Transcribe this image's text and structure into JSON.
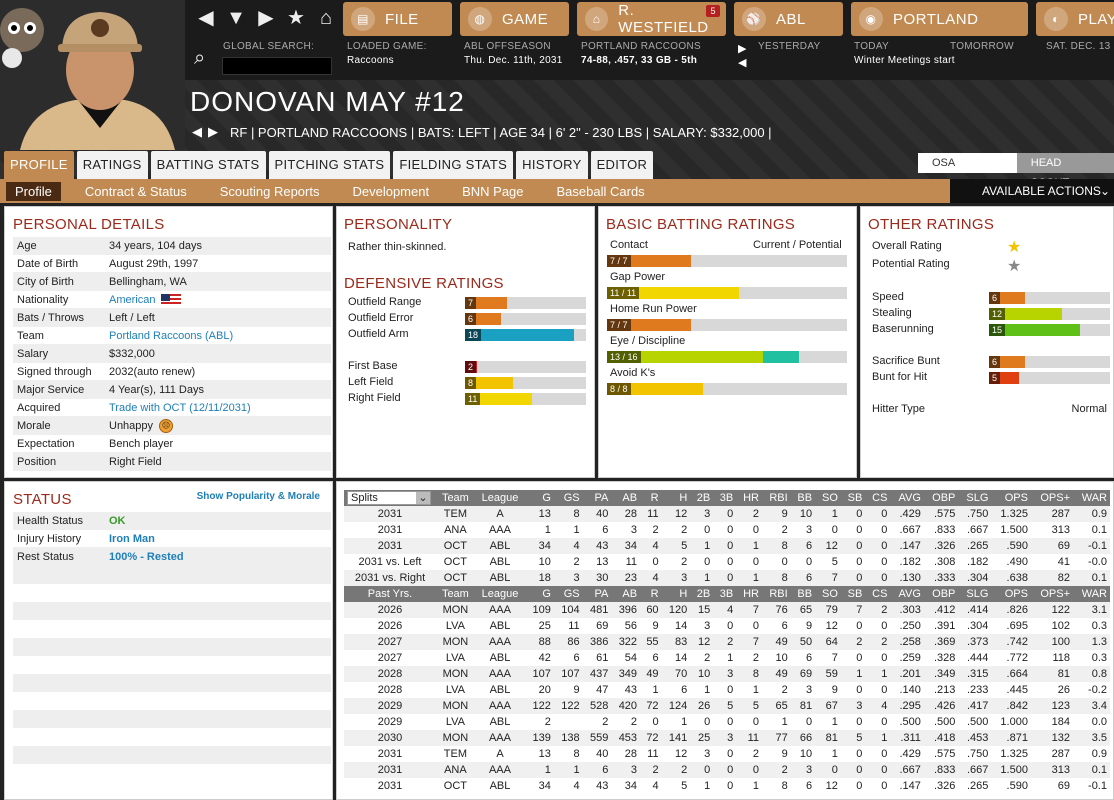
{
  "header": {
    "menu": {
      "file": "FILE",
      "game": "GAME",
      "manager": "R. WESTFIELD",
      "manager_badge": "5",
      "league": "ABL",
      "team": "PORTLAND",
      "play": "PLAY"
    },
    "global_search_label": "GLOBAL SEARCH:",
    "loaded_game_label": "LOADED GAME:",
    "loaded_game": "Raccoons",
    "offseason_label": "ABL OFFSEASON",
    "date": "Thu. Dec. 11th, 2031",
    "team_label": "PORTLAND RACCOONS",
    "team_record": "74-88, .457, 33 GB - 5th",
    "yesterday": "YESTERDAY",
    "today": "TODAY",
    "tomorrow": "TOMORROW",
    "next_day": "SAT. DEC. 13",
    "today_event": "Winter Meetings start"
  },
  "player": {
    "name": "DONOVAN MAY  #12",
    "line": "RF | PORTLAND RACCOONS  |  BATS: LEFT  |  AGE 34  |  6' 2\" - 230 LBS  |  SALARY: $332,000  |"
  },
  "tabs": [
    "PROFILE",
    "RATINGS",
    "BATTING STATS",
    "PITCHING STATS",
    "FIELDING STATS",
    "HISTORY",
    "EDITOR"
  ],
  "toggle": {
    "osa": "OSA RATINGS",
    "scout": "HEAD SCOUT"
  },
  "subtabs": [
    "Profile",
    "Contract & Status",
    "Scouting Reports",
    "Development",
    "BNN Page",
    "Baseball Cards"
  ],
  "actions_label": "AVAILABLE ACTIONS",
  "personal": {
    "title": "PERSONAL DETAILS",
    "rows": [
      {
        "k": "Age",
        "v": "34 years, 104 days"
      },
      {
        "k": "Date of Birth",
        "v": "August 29th, 1997"
      },
      {
        "k": "City of Birth",
        "v": "Bellingham, WA"
      },
      {
        "k": "Nationality",
        "v": "American",
        "link": true
      },
      {
        "k": "Bats / Throws",
        "v": "Left / Left"
      },
      {
        "k": "Team",
        "v": "Portland Raccoons (ABL)",
        "link": true
      },
      {
        "k": "Salary",
        "v": "$332,000"
      },
      {
        "k": "Signed through",
        "v": "2032(auto renew)"
      },
      {
        "k": "Major Service",
        "v": "4 Year(s), 111 Days"
      },
      {
        "k": "Acquired",
        "v": "Trade with OCT (12/11/2031)",
        "link": true
      },
      {
        "k": "Morale",
        "v": "Unhappy"
      },
      {
        "k": "Expectation",
        "v": "Bench player"
      },
      {
        "k": "Position",
        "v": "Right Field"
      }
    ]
  },
  "personality": {
    "title": "PERSONALITY",
    "text": "Rather thin-skinned."
  },
  "defensive": {
    "title": "DEFENSIVE RATINGS",
    "rows": [
      {
        "label": "Outfield Range",
        "value": 7,
        "color": "#e07a1f"
      },
      {
        "label": "Outfield Error",
        "value": 6,
        "color": "#e07a1f"
      },
      {
        "label": "Outfield Arm",
        "value": 18,
        "color": "#1aa0c0"
      },
      {
        "label": "First Base",
        "value": 2,
        "color": "#d02020"
      },
      {
        "label": "Left Field",
        "value": 8,
        "color": "#f2c400"
      },
      {
        "label": "Right Field",
        "value": 11,
        "color": "#f2d600"
      }
    ]
  },
  "batting": {
    "title": "BASIC BATTING RATINGS",
    "cp_label": "Current / Potential",
    "rows": [
      {
        "label": "Contact",
        "text": "7 / 7",
        "cur": 7,
        "pot": 7,
        "color": "#e07a1f",
        "pcolor": "#e07a1f"
      },
      {
        "label": "Gap Power",
        "text": "11 / 11",
        "cur": 11,
        "pot": 11,
        "color": "#f2d600",
        "pcolor": "#f2d600"
      },
      {
        "label": "Home Run Power",
        "text": "7 / 7",
        "cur": 7,
        "pot": 7,
        "color": "#e07a1f",
        "pcolor": "#e07a1f"
      },
      {
        "label": "Eye / Discipline",
        "text": "13 / 16",
        "cur": 13,
        "pot": 16,
        "color": "#b7d400",
        "pcolor": "#20c0a0"
      },
      {
        "label": "Avoid K's",
        "text": "8 / 8",
        "cur": 8,
        "pot": 8,
        "color": "#f2c400",
        "pcolor": "#f2c400"
      }
    ]
  },
  "other": {
    "title": "OTHER RATINGS",
    "overall_label": "Overall Rating",
    "potential_label": "Potential Rating",
    "overall_star_color": "#f2c400",
    "potential_star_color": "#888888",
    "hitter_type_label": "Hitter Type",
    "hitter_type": "Normal",
    "rows": [
      {
        "label": "Speed",
        "value": 6,
        "color": "#e07a1f"
      },
      {
        "label": "Stealing",
        "value": 12,
        "color": "#b7d400"
      },
      {
        "label": "Baserunning",
        "value": 15,
        "color": "#5fc018"
      },
      {
        "label": "Sacrifice Bunt",
        "value": 6,
        "color": "#e07a1f"
      },
      {
        "label": "Bunt for Hit",
        "value": 5,
        "color": "#e04010"
      }
    ]
  },
  "status": {
    "title": "STATUS",
    "link": "Show Popularity & Morale",
    "rows": [
      {
        "k": "Health Status",
        "v": "OK",
        "color": "#3a9a2a"
      },
      {
        "k": "Injury History",
        "v": "Iron Man",
        "color": "#1f7fb8"
      },
      {
        "k": "Rest Status",
        "v": "100% - Rested",
        "color": "#1f7fb8"
      }
    ]
  },
  "stats": {
    "splits_label": "Splits",
    "cols": [
      "Team",
      "League",
      "G",
      "GS",
      "PA",
      "AB",
      "R",
      "H",
      "2B",
      "3B",
      "HR",
      "RBI",
      "BB",
      "SO",
      "SB",
      "CS",
      "AVG",
      "OBP",
      "SLG",
      "OPS",
      "OPS+",
      "WAR"
    ],
    "split_rows": [
      [
        "2031",
        "TEM",
        "A",
        "13",
        "8",
        "40",
        "28",
        "11",
        "12",
        "3",
        "0",
        "2",
        "9",
        "10",
        "1",
        "0",
        "0",
        ".429",
        ".575",
        ".750",
        "1.325",
        "287",
        "0.9"
      ],
      [
        "2031",
        "ANA",
        "AAA",
        "1",
        "1",
        "6",
        "3",
        "2",
        "2",
        "0",
        "0",
        "0",
        "2",
        "3",
        "0",
        "0",
        "0",
        ".667",
        ".833",
        ".667",
        "1.500",
        "313",
        "0.1"
      ],
      [
        "2031",
        "OCT",
        "ABL",
        "34",
        "4",
        "43",
        "34",
        "4",
        "5",
        "1",
        "0",
        "1",
        "8",
        "6",
        "12",
        "0",
        "0",
        ".147",
        ".326",
        ".265",
        ".590",
        "69",
        "-0.1"
      ],
      [
        "2031 vs. Left",
        "OCT",
        "ABL",
        "10",
        "2",
        "13",
        "11",
        "0",
        "2",
        "0",
        "0",
        "0",
        "0",
        "0",
        "5",
        "0",
        "0",
        ".182",
        ".308",
        ".182",
        ".490",
        "41",
        "-0.0"
      ],
      [
        "2031 vs. Right",
        "OCT",
        "ABL",
        "18",
        "3",
        "30",
        "23",
        "4",
        "3",
        "1",
        "0",
        "1",
        "8",
        "6",
        "7",
        "0",
        "0",
        ".130",
        ".333",
        ".304",
        ".638",
        "82",
        "0.1"
      ]
    ],
    "past_label": "Past Yrs.",
    "past_rows": [
      [
        "2026",
        "MON",
        "AAA",
        "109",
        "104",
        "481",
        "396",
        "60",
        "120",
        "15",
        "4",
        "7",
        "76",
        "65",
        "79",
        "7",
        "2",
        ".303",
        ".412",
        ".414",
        ".826",
        "122",
        "3.1"
      ],
      [
        "2026",
        "LVA",
        "ABL",
        "25",
        "11",
        "69",
        "56",
        "9",
        "14",
        "3",
        "0",
        "0",
        "6",
        "9",
        "12",
        "0",
        "0",
        ".250",
        ".391",
        ".304",
        ".695",
        "102",
        "0.3"
      ],
      [
        "2027",
        "MON",
        "AAA",
        "88",
        "86",
        "386",
        "322",
        "55",
        "83",
        "12",
        "2",
        "7",
        "49",
        "50",
        "64",
        "2",
        "2",
        ".258",
        ".369",
        ".373",
        ".742",
        "100",
        "1.3"
      ],
      [
        "2027",
        "LVA",
        "ABL",
        "42",
        "6",
        "61",
        "54",
        "6",
        "14",
        "2",
        "1",
        "2",
        "10",
        "6",
        "7",
        "0",
        "0",
        ".259",
        ".328",
        ".444",
        ".772",
        "118",
        "0.3"
      ],
      [
        "2028",
        "MON",
        "AAA",
        "107",
        "107",
        "437",
        "349",
        "49",
        "70",
        "10",
        "3",
        "8",
        "49",
        "69",
        "59",
        "1",
        "1",
        ".201",
        ".349",
        ".315",
        ".664",
        "81",
        "0.8"
      ],
      [
        "2028",
        "LVA",
        "ABL",
        "20",
        "9",
        "47",
        "43",
        "1",
        "6",
        "1",
        "0",
        "1",
        "2",
        "3",
        "9",
        "0",
        "0",
        ".140",
        ".213",
        ".233",
        ".445",
        "26",
        "-0.2"
      ],
      [
        "2029",
        "MON",
        "AAA",
        "122",
        "122",
        "528",
        "420",
        "72",
        "124",
        "26",
        "5",
        "5",
        "65",
        "81",
        "67",
        "3",
        "4",
        ".295",
        ".426",
        ".417",
        ".842",
        "123",
        "3.4"
      ],
      [
        "2029",
        "LVA",
        "ABL",
        "2",
        "",
        "2",
        "2",
        "0",
        "1",
        "0",
        "0",
        "0",
        "1",
        "0",
        "1",
        "0",
        "0",
        ".500",
        ".500",
        ".500",
        "1.000",
        "184",
        "0.0"
      ],
      [
        "2030",
        "MON",
        "AAA",
        "139",
        "138",
        "559",
        "453",
        "72",
        "141",
        "25",
        "3",
        "11",
        "77",
        "66",
        "81",
        "5",
        "1",
        ".311",
        ".418",
        ".453",
        ".871",
        "132",
        "3.5"
      ],
      [
        "2031",
        "TEM",
        "A",
        "13",
        "8",
        "40",
        "28",
        "11",
        "12",
        "3",
        "0",
        "2",
        "9",
        "10",
        "1",
        "0",
        "0",
        ".429",
        ".575",
        ".750",
        "1.325",
        "287",
        "0.9"
      ],
      [
        "2031",
        "ANA",
        "AAA",
        "1",
        "1",
        "6",
        "3",
        "2",
        "2",
        "0",
        "0",
        "0",
        "2",
        "3",
        "0",
        "0",
        "0",
        ".667",
        ".833",
        ".667",
        "1.500",
        "313",
        "0.1"
      ],
      [
        "2031",
        "OCT",
        "ABL",
        "34",
        "4",
        "43",
        "34",
        "4",
        "5",
        "1",
        "0",
        "1",
        "8",
        "6",
        "12",
        "0",
        "0",
        ".147",
        ".326",
        ".265",
        ".590",
        "69",
        "-0.1"
      ]
    ]
  }
}
